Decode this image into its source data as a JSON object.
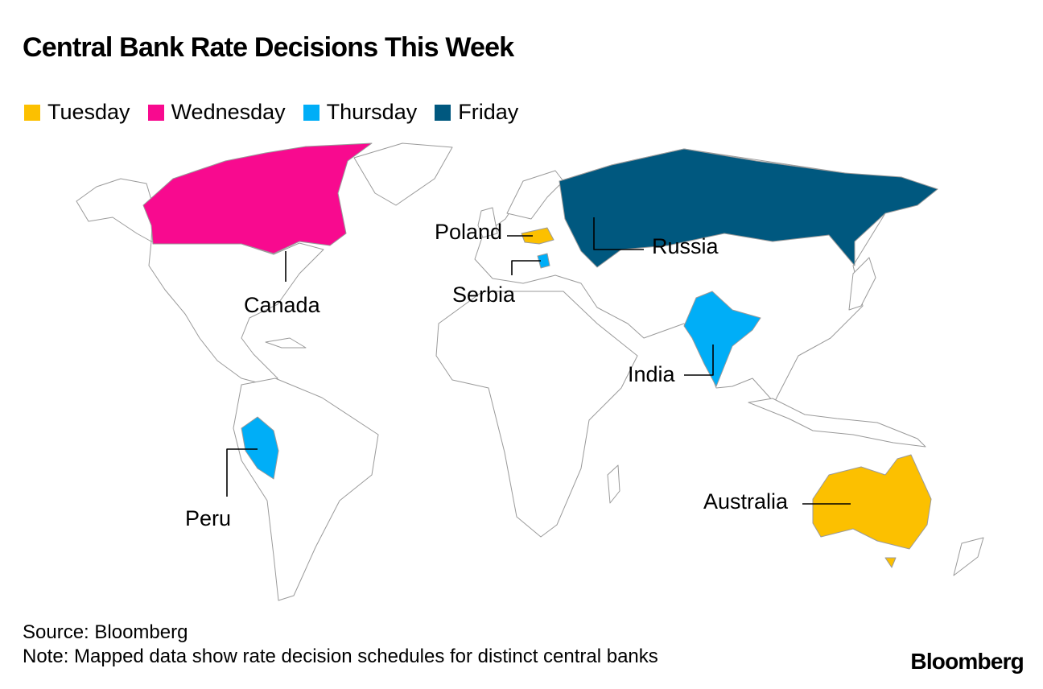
{
  "title": "Central Bank Rate Decisions This Week",
  "legend": [
    {
      "label": "Tuesday",
      "color": "#FCC000"
    },
    {
      "label": "Wednesday",
      "color": "#F80A8F"
    },
    {
      "label": "Thursday",
      "color": "#00AEF7"
    },
    {
      "label": "Friday",
      "color": "#00587F"
    }
  ],
  "countries": [
    {
      "name": "Poland",
      "day": "Tuesday"
    },
    {
      "name": "Russia",
      "day": "Friday"
    },
    {
      "name": "Serbia",
      "day": "Thursday"
    },
    {
      "name": "Canada",
      "day": "Wednesday"
    },
    {
      "name": "India",
      "day": "Thursday"
    },
    {
      "name": "Peru",
      "day": "Thursday"
    },
    {
      "name": "Australia",
      "day": "Tuesday"
    }
  ],
  "source": "Source: Bloomberg",
  "note": "Note: Mapped data show rate decision schedules for distinct central banks",
  "logo": "Bloomberg"
}
